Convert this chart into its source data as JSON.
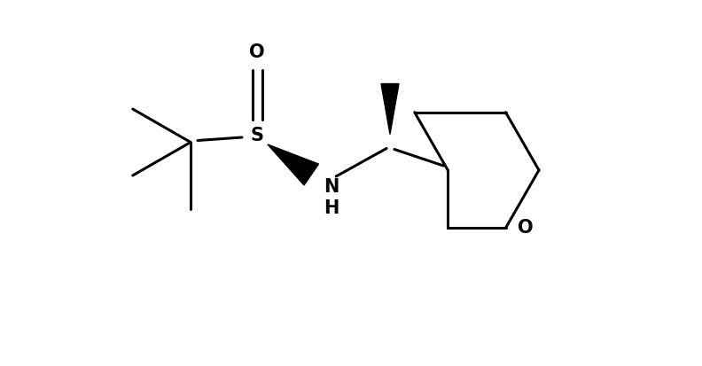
{
  "background_color": "#ffffff",
  "line_color": "#000000",
  "line_width": 2.2,
  "figsize": [
    7.92,
    4.13
  ],
  "dpi": 100,
  "xlim": [
    0,
    7.92
  ],
  "ylim": [
    0,
    4.13
  ]
}
